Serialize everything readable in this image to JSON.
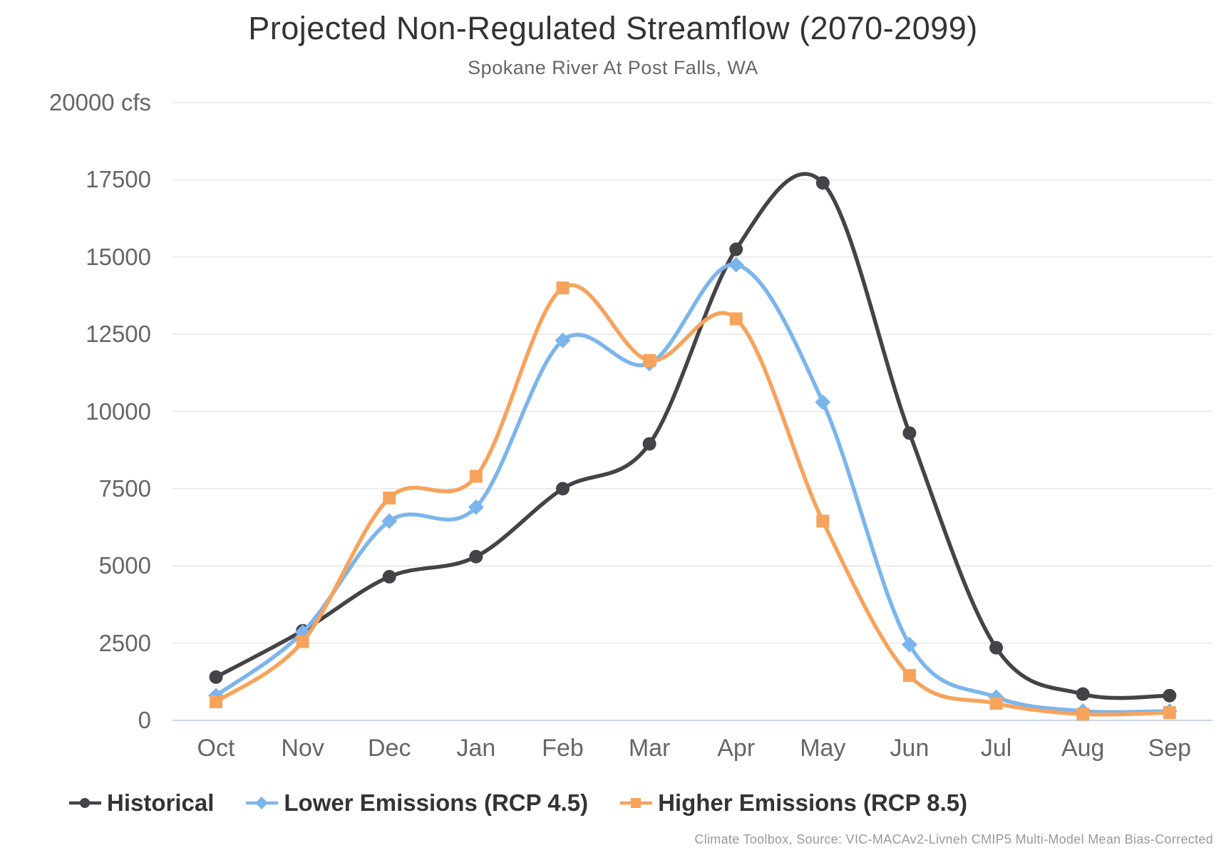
{
  "chart": {
    "title": "Projected Non-Regulated Streamflow (2070-2099)",
    "subtitle": "Spokane River At Post Falls, WA",
    "credits": "Climate Toolbox, Source: VIC-MACAv2-Livneh CMIP5 Multi-Model Mean Bias-Corrected"
  },
  "chart_data": {
    "type": "line",
    "title": "Projected Non-Regulated Streamflow (2070-2099)",
    "subtitle": "Spokane River At Post Falls, WA",
    "categories": [
      "Oct",
      "Nov",
      "Dec",
      "Jan",
      "Feb",
      "Mar",
      "Apr",
      "May",
      "Jun",
      "Jul",
      "Aug",
      "Sep"
    ],
    "series": [
      {
        "name": "Historical",
        "color": "#434348",
        "marker": "circle",
        "values": [
          1400,
          2900,
          4650,
          5300,
          7500,
          8950,
          15250,
          17400,
          9300,
          2350,
          850,
          800
        ]
      },
      {
        "name": "Lower Emissions (RCP 4.5)",
        "color": "#7cb5ec",
        "marker": "diamond",
        "values": [
          800,
          2850,
          6450,
          6900,
          12300,
          11550,
          14750,
          10300,
          2450,
          750,
          300,
          300
        ]
      },
      {
        "name": "Higher Emissions (RCP 8.5)",
        "color": "#f7a35c",
        "marker": "square",
        "values": [
          600,
          2550,
          7200,
          7900,
          14000,
          11650,
          13000,
          6450,
          1450,
          550,
          200,
          250
        ]
      }
    ],
    "yaxis": {
      "min": 0,
      "max": 20000,
      "tick_interval": 2500,
      "top_tick_label": "20000 cfs",
      "unit": "cfs"
    },
    "xlabel": "",
    "ylabel": "cfs",
    "grid": true,
    "legend_position": "bottom-left",
    "colors": {
      "gridline": "#e6e6e6",
      "axis_line": "#ccd6eb",
      "title": "#333333",
      "subtitle": "#666666",
      "axis_labels": "#666666",
      "credits": "#999999"
    }
  }
}
